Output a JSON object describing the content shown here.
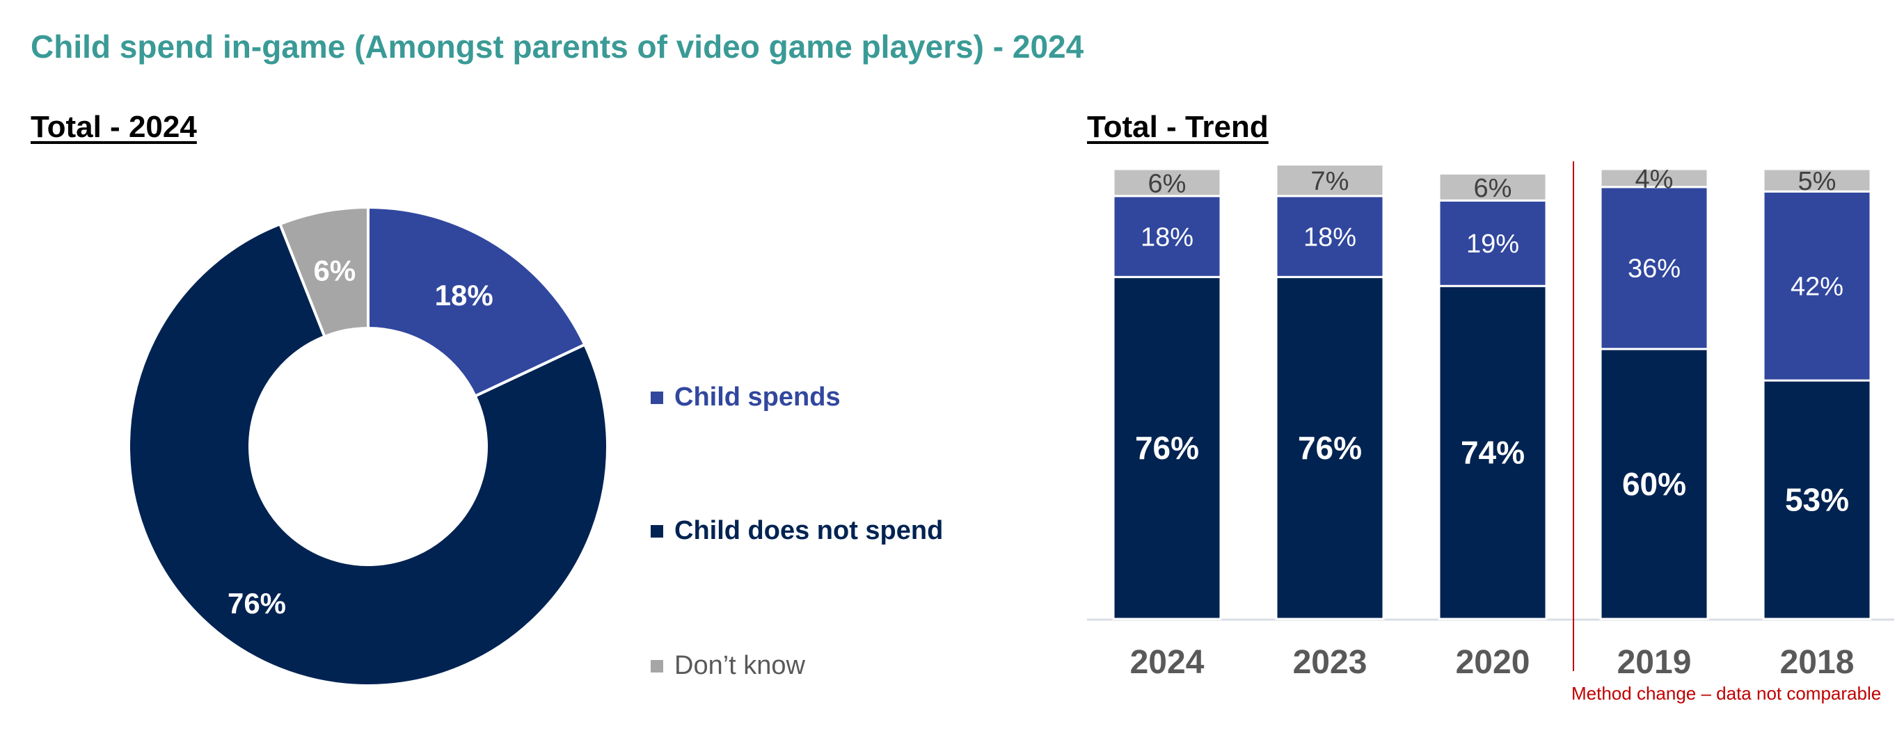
{
  "title": "Child spend in-game (Amongst parents of video game players) - 2024",
  "colors": {
    "title": "#3a9a96",
    "spends": "#31479e",
    "not_spend": "#002352",
    "dont_know_pie": "#a6a6a6",
    "dont_know_bar": "#c0c0c0",
    "note": "#c00000"
  },
  "chart_data": [
    {
      "type": "pie",
      "subtitle": "Total - 2024",
      "donut": true,
      "slices": [
        {
          "name": "Child spends",
          "value": 18,
          "label": "18%"
        },
        {
          "name": "Child does not spend",
          "value": 76,
          "label": "76%"
        },
        {
          "name": "Don’t know",
          "value": 6,
          "label": "6%"
        }
      ],
      "legend": [
        "Child spends",
        "Child does not spend",
        "Don’t know"
      ],
      "legend_placement": "right"
    },
    {
      "type": "bar",
      "stacked": true,
      "subtitle": "Total - Trend",
      "categories": [
        "2024",
        "2023",
        "2020",
        "2019",
        "2018"
      ],
      "series": [
        {
          "name": "Child does not spend",
          "values": [
            76,
            76,
            74,
            60,
            53
          ],
          "labels": [
            "76%",
            "76%",
            "74%",
            "60%",
            "53%"
          ]
        },
        {
          "name": "Child spends",
          "values": [
            18,
            18,
            19,
            36,
            42
          ],
          "labels": [
            "18%",
            "18%",
            "19%",
            "36%",
            "42%"
          ]
        },
        {
          "name": "Don’t know",
          "values": [
            6,
            7,
            6,
            4,
            5
          ],
          "labels": [
            "6%",
            "7%",
            "6%",
            "4%",
            "5%"
          ]
        }
      ],
      "ylim": [
        0,
        100
      ],
      "divider_after": "2020",
      "annotation": "Method change – data not comparable"
    }
  ]
}
